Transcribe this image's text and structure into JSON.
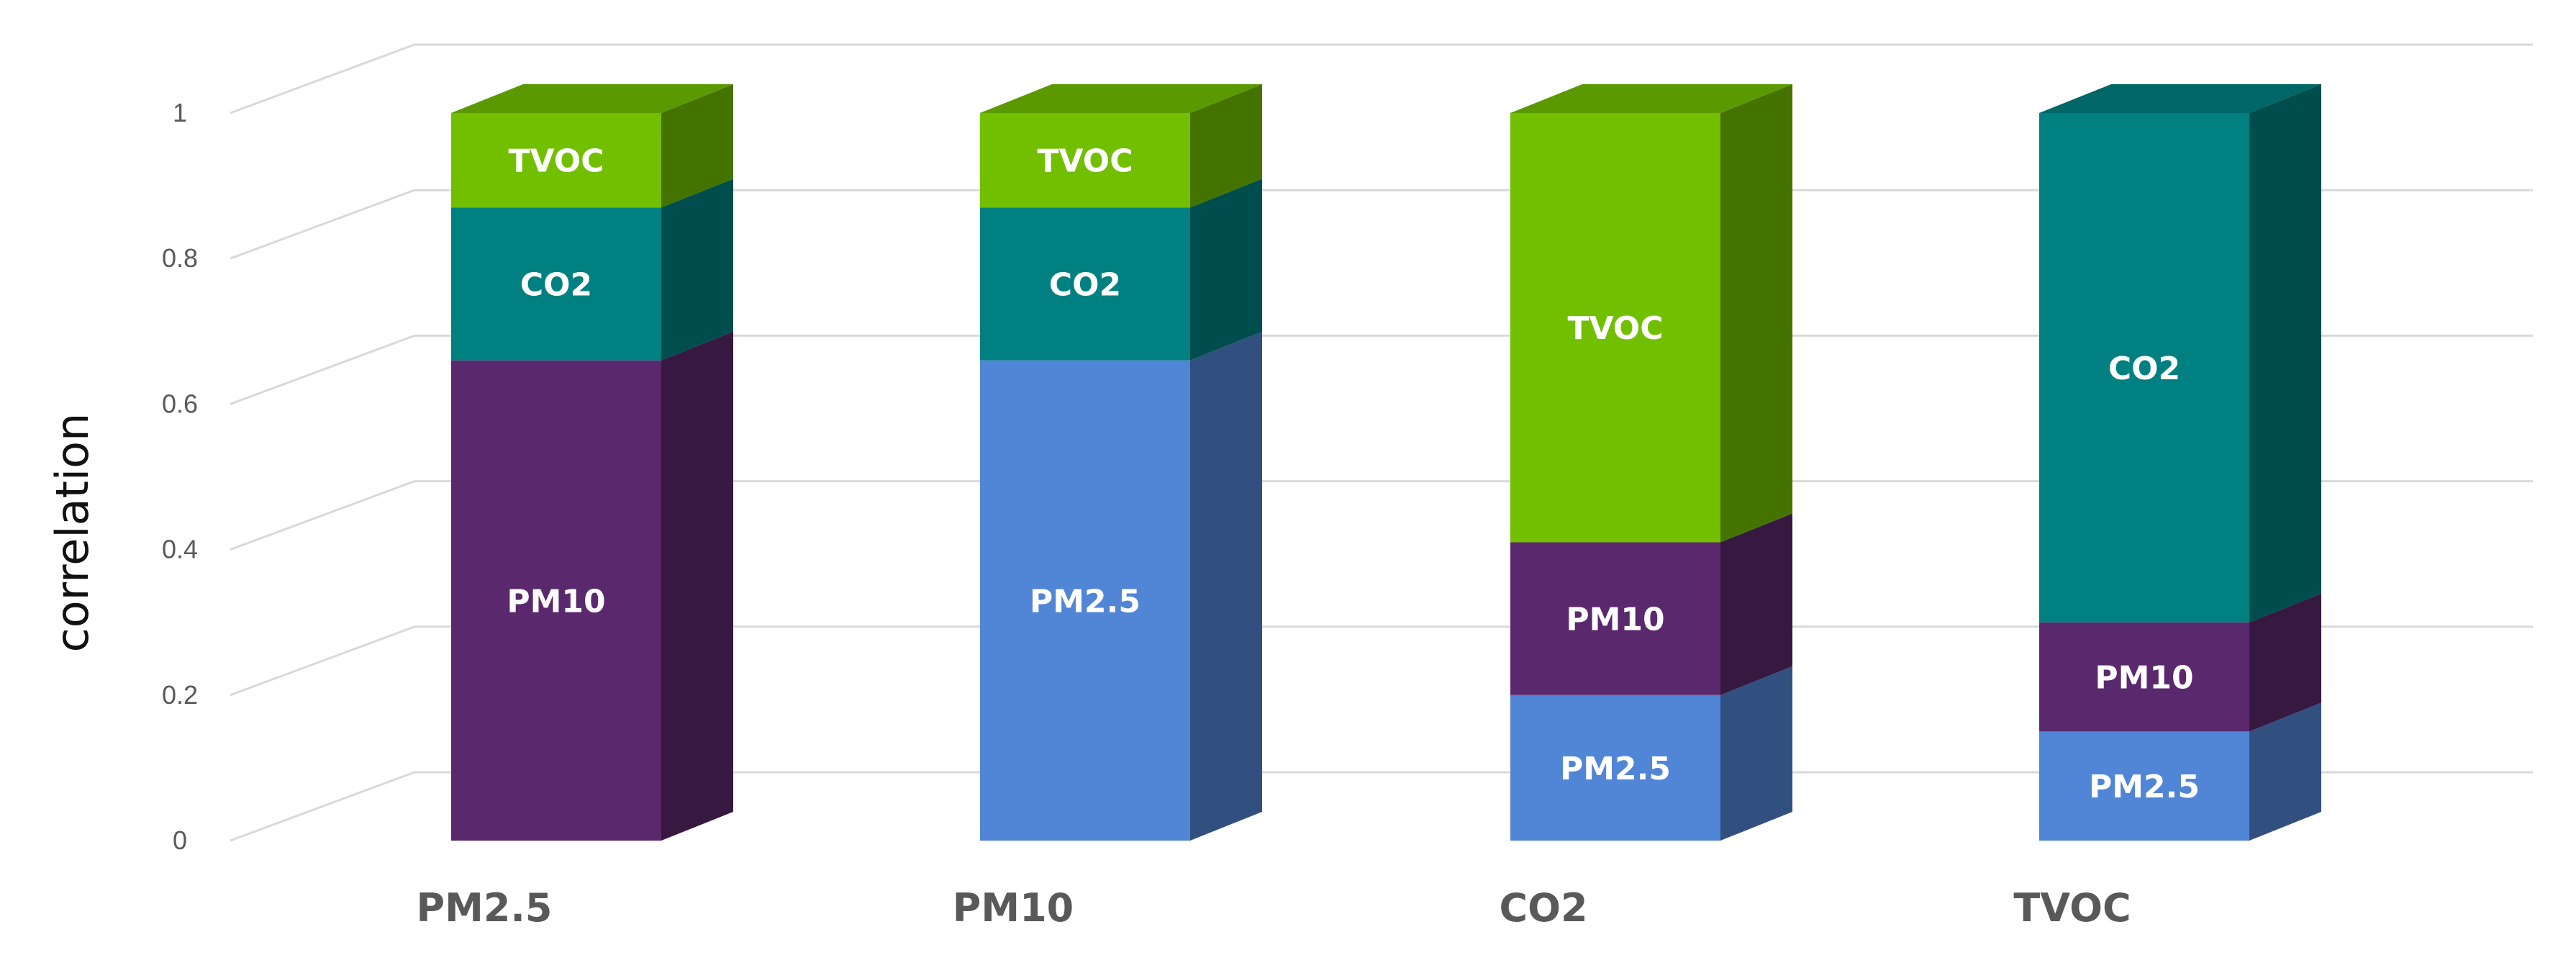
{
  "chart_data": {
    "type": "bar",
    "stacked": true,
    "three_d": true,
    "title": "",
    "xlabel": "",
    "ylabel": "correlation",
    "ylim": [
      0,
      1
    ],
    "yticks": [
      "0",
      "0.2",
      "0.4",
      "0.6",
      "0.8",
      "1"
    ],
    "grid": true,
    "legend": "none",
    "categories": [
      "PM2.5",
      "PM10",
      "CO2",
      "TVOC"
    ],
    "stacks": [
      {
        "category": "PM2.5",
        "segments": [
          {
            "label": "PM10",
            "value": 0.66
          },
          {
            "label": "CO2",
            "value": 0.21
          },
          {
            "label": "TVOC",
            "value": 0.13
          }
        ]
      },
      {
        "category": "PM10",
        "segments": [
          {
            "label": "PM2.5",
            "value": 0.66
          },
          {
            "label": "CO2",
            "value": 0.21
          },
          {
            "label": "TVOC",
            "value": 0.13
          }
        ]
      },
      {
        "category": "CO2",
        "segments": [
          {
            "label": "PM2.5",
            "value": 0.2
          },
          {
            "label": "PM10",
            "value": 0.21
          },
          {
            "label": "TVOC",
            "value": 0.59
          }
        ]
      },
      {
        "category": "TVOC",
        "segments": [
          {
            "label": "PM2.5",
            "value": 0.15
          },
          {
            "label": "PM10",
            "value": 0.15
          },
          {
            "label": "CO2",
            "value": 0.7
          }
        ]
      }
    ],
    "colors": {
      "PM2.5": "#5185D6",
      "PM10": "#5A286C",
      "CO2": "#008080",
      "TVOC": "#72BF00"
    }
  }
}
